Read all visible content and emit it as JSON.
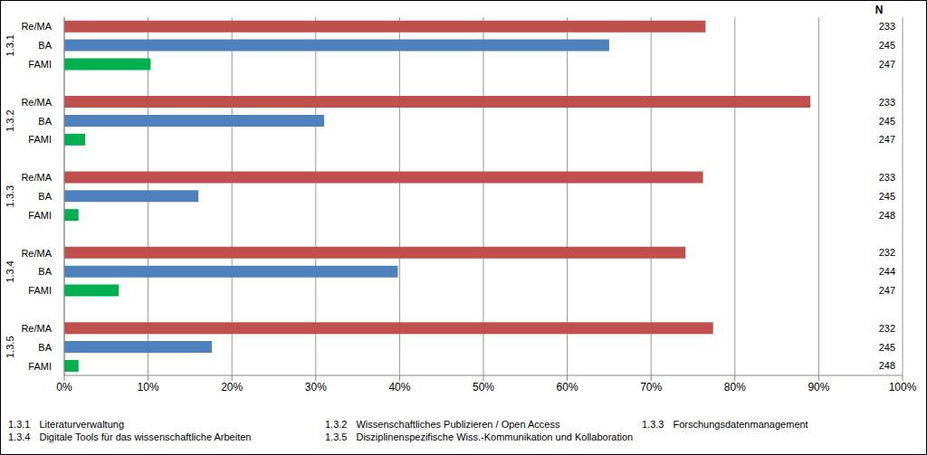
{
  "chart_data": {
    "type": "bar",
    "orientation": "horizontal",
    "grid": true,
    "categories": [
      "1.3.1",
      "1.3.2",
      "1.3.3",
      "1.3.4",
      "1.3.5"
    ],
    "category_labels": [
      "Literaturverwaltung",
      "Wissenschaftliches Publizieren / Open Access",
      "Forschungsdatenmanagement",
      "Digitale Tools für das wissenschaftliche Arbeiten",
      "Disziplinenspezifische Wiss.-Kommunikation und Kollaboration"
    ],
    "n_label": "N",
    "series": [
      {
        "name": "Re/MA",
        "color": "#c0504d",
        "values": [
          76.5,
          89,
          76.2,
          74.1,
          77.4
        ],
        "n": [
          233,
          233,
          233,
          232,
          232
        ]
      },
      {
        "name": "BA",
        "color": "#4f81bd",
        "values": [
          65,
          31,
          16,
          39.8,
          17.6
        ],
        "n": [
          245,
          245,
          245,
          244,
          245
        ]
      },
      {
        "name": "FAMI",
        "color": "#00b050",
        "values": [
          10.3,
          2.5,
          1.7,
          6.5,
          1.7
        ],
        "n": [
          247,
          247,
          248,
          247,
          248
        ]
      }
    ],
    "xlim": [
      0,
      100
    ],
    "xticks": [
      {
        "value": 0,
        "label": "0%"
      },
      {
        "value": 10,
        "label": "10%"
      },
      {
        "value": 20,
        "label": "20%"
      },
      {
        "value": 30,
        "label": "30%"
      },
      {
        "value": 40,
        "label": "40%"
      },
      {
        "value": 50,
        "label": "50%"
      },
      {
        "value": 60,
        "label": "60%"
      },
      {
        "value": 70,
        "label": "70%"
      },
      {
        "value": 80,
        "label": "80%"
      },
      {
        "value": 90,
        "label": "90%"
      },
      {
        "value": 100,
        "label": "100%"
      }
    ]
  }
}
